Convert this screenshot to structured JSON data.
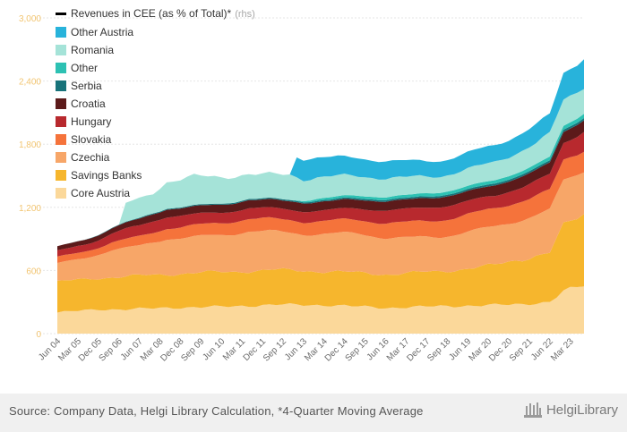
{
  "chart_data": {
    "type": "area",
    "stacked": true,
    "title": "",
    "xlabel": "",
    "ylabel": "",
    "ylim": [
      0,
      3000
    ],
    "y_ticks": [
      "0",
      "600",
      "1,200",
      "1,800",
      "2,400",
      "3,000"
    ],
    "x_tick_labels": [
      "Jun 04",
      "Mar 05",
      "Dec 05",
      "Sep 06",
      "Jun 07",
      "Mar 08",
      "Dec 08",
      "Sep 09",
      "Jun 10",
      "Mar 11",
      "Dec 11",
      "Sep 12",
      "Jun 13",
      "Mar 14",
      "Dec 14",
      "Sep 15",
      "Jun 16",
      "Mar 17",
      "Dec 17",
      "Sep 18",
      "Jun 19",
      "Mar 20",
      "Dec 20",
      "Sep 21",
      "Jun 22",
      "Mar 23"
    ],
    "x_start_label": "Q2 2004",
    "quarters": 78,
    "legend_position": "top-left",
    "line_series": {
      "name": "Revenues in CEE (as % of Total)*",
      "axis_note": "(rhs)",
      "color": "#000000"
    },
    "series": [
      {
        "name": "Core Austria",
        "color": "#fbd89a",
        "anchors": [
          [
            0,
            200
          ],
          [
            6,
            230
          ],
          [
            10,
            230
          ],
          [
            16,
            245
          ],
          [
            24,
            255
          ],
          [
            32,
            275
          ],
          [
            40,
            270
          ],
          [
            48,
            245
          ],
          [
            56,
            260
          ],
          [
            64,
            270
          ],
          [
            68,
            280
          ],
          [
            72,
            300
          ],
          [
            74,
            400
          ],
          [
            77,
            460
          ]
        ]
      },
      {
        "name": "Savings Banks",
        "color": "#f6b62d",
        "anchors": [
          [
            0,
            290
          ],
          [
            6,
            300
          ],
          [
            10,
            310
          ],
          [
            16,
            320
          ],
          [
            24,
            330
          ],
          [
            32,
            330
          ],
          [
            40,
            320
          ],
          [
            48,
            320
          ],
          [
            56,
            330
          ],
          [
            64,
            380
          ],
          [
            68,
            430
          ],
          [
            72,
            470
          ],
          [
            74,
            620
          ],
          [
            77,
            680
          ]
        ]
      },
      {
        "name": "Czechia",
        "color": "#f7a668",
        "anchors": [
          [
            0,
            170
          ],
          [
            4,
            200
          ],
          [
            8,
            260
          ],
          [
            12,
            280
          ],
          [
            16,
            340
          ],
          [
            20,
            340
          ],
          [
            24,
            350
          ],
          [
            28,
            380
          ],
          [
            32,
            360
          ],
          [
            36,
            350
          ],
          [
            40,
            360
          ],
          [
            44,
            370
          ],
          [
            48,
            350
          ],
          [
            52,
            330
          ],
          [
            56,
            330
          ],
          [
            60,
            350
          ],
          [
            64,
            360
          ],
          [
            68,
            380
          ],
          [
            72,
            400
          ],
          [
            74,
            420
          ],
          [
            77,
            410
          ]
        ]
      },
      {
        "name": "Slovakia",
        "color": "#f5733b",
        "anchors": [
          [
            0,
            60
          ],
          [
            6,
            65
          ],
          [
            12,
            90
          ],
          [
            20,
            110
          ],
          [
            28,
            120
          ],
          [
            36,
            120
          ],
          [
            44,
            130
          ],
          [
            52,
            150
          ],
          [
            60,
            165
          ],
          [
            68,
            180
          ],
          [
            74,
            190
          ],
          [
            77,
            200
          ]
        ]
      },
      {
        "name": "Hungary",
        "color": "#b8292e",
        "anchors": [
          [
            0,
            60
          ],
          [
            6,
            70
          ],
          [
            10,
            100
          ],
          [
            16,
            110
          ],
          [
            24,
            100
          ],
          [
            32,
            100
          ],
          [
            40,
            100
          ],
          [
            48,
            120
          ],
          [
            56,
            130
          ],
          [
            64,
            120
          ],
          [
            70,
            140
          ],
          [
            74,
            160
          ],
          [
            77,
            180
          ]
        ]
      },
      {
        "name": "Croatia",
        "color": "#5c1a1a",
        "anchors": [
          [
            0,
            40
          ],
          [
            8,
            50
          ],
          [
            14,
            70
          ],
          [
            24,
            75
          ],
          [
            34,
            80
          ],
          [
            44,
            85
          ],
          [
            54,
            90
          ],
          [
            62,
            95
          ],
          [
            70,
            105
          ],
          [
            77,
            110
          ]
        ]
      },
      {
        "name": "Serbia",
        "color": "#17737a",
        "anchors": [
          [
            0,
            0
          ],
          [
            4,
            2
          ],
          [
            8,
            5
          ],
          [
            14,
            8
          ],
          [
            24,
            10
          ],
          [
            34,
            12
          ],
          [
            44,
            14
          ],
          [
            54,
            16
          ],
          [
            64,
            18
          ],
          [
            77,
            22
          ]
        ]
      },
      {
        "name": "Other",
        "color": "#2dc1b3",
        "anchors": [
          [
            0,
            0
          ],
          [
            10,
            0
          ],
          [
            34,
            0
          ],
          [
            38,
            20
          ],
          [
            46,
            25
          ],
          [
            56,
            30
          ],
          [
            64,
            32
          ],
          [
            72,
            35
          ],
          [
            77,
            40
          ]
        ]
      },
      {
        "name": "Romania",
        "color": "#a5e3d8",
        "anchors": [
          [
            0,
            0
          ],
          [
            9,
            0
          ],
          [
            10,
            180
          ],
          [
            14,
            190
          ],
          [
            16,
            250
          ],
          [
            20,
            280
          ],
          [
            24,
            250
          ],
          [
            30,
            230
          ],
          [
            34,
            240
          ],
          [
            36,
            200
          ],
          [
            40,
            200
          ],
          [
            46,
            180
          ],
          [
            52,
            170
          ],
          [
            56,
            150
          ],
          [
            62,
            170
          ],
          [
            66,
            180
          ],
          [
            70,
            200
          ],
          [
            74,
            250
          ],
          [
            77,
            250
          ]
        ]
      },
      {
        "name": "Other Austria",
        "color": "#28b3db",
        "anchors": [
          [
            0,
            0
          ],
          [
            34,
            0
          ],
          [
            35,
            200
          ],
          [
            40,
            180
          ],
          [
            46,
            170
          ],
          [
            52,
            150
          ],
          [
            58,
            150
          ],
          [
            64,
            160
          ],
          [
            68,
            170
          ],
          [
            72,
            180
          ],
          [
            74,
            250
          ],
          [
            77,
            280
          ]
        ]
      }
    ]
  },
  "footer": {
    "source": "Source: Company Data, Helgi Library Calculation, *4-Quarter Moving Average",
    "logo_text": "HelgiLibrary"
  }
}
